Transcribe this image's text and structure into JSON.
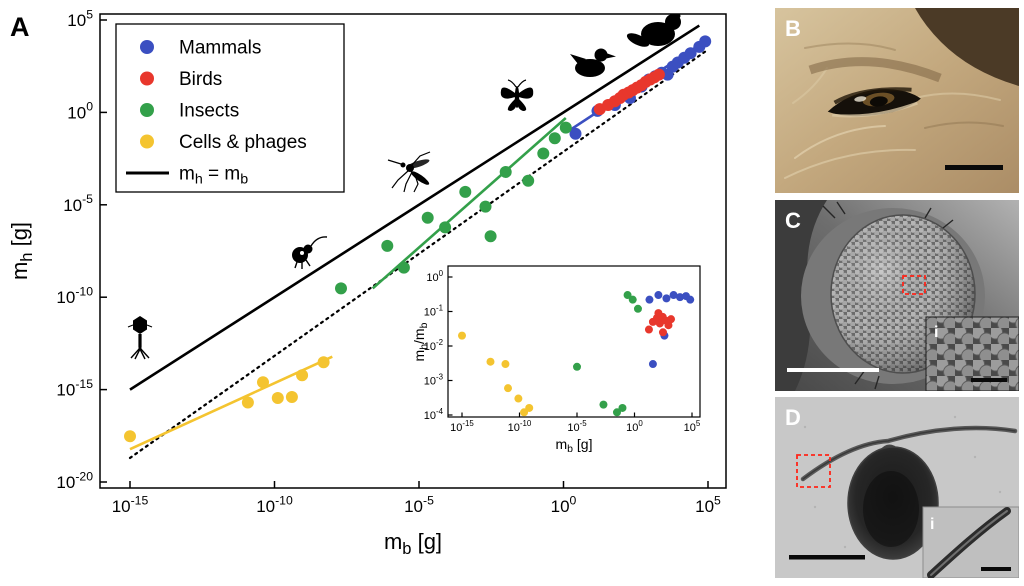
{
  "panels": {
    "a": "A",
    "b": "B",
    "c": "C",
    "d": "D",
    "inset_c": "i",
    "inset_d": "i"
  },
  "colors": {
    "mammals": "#3b4fc1",
    "birds": "#e8372c",
    "insects": "#33a04a",
    "cells": "#f4c430",
    "black": "#000000",
    "roi": "#ff2519"
  },
  "icons": [
    "beaver-silhouette",
    "duck-silhouette",
    "butterfly-silhouette",
    "mosquito-silhouette",
    "springtail-silhouette",
    "phage-silhouette",
    "roi-box",
    "scale-bar"
  ],
  "chart_data": [
    {
      "name": "main-plot",
      "type": "scatter",
      "xscale": "log",
      "yscale": "log",
      "xlabel": "m_b [g]",
      "ylabel": "m_h [g]",
      "xlim": [
        1e-15,
        100000.0
      ],
      "ylim": [
        1e-20,
        100000.0
      ],
      "grid": false,
      "x_tick_exponents": [
        -15,
        -10,
        -5,
        0,
        5
      ],
      "y_tick_exponents": [
        5,
        0,
        -5,
        -10,
        -15,
        -20
      ],
      "legend": [
        {
          "label": "Mammals",
          "marker": "dot",
          "color_key": "mammals"
        },
        {
          "label": "Birds",
          "marker": "dot",
          "color_key": "birds"
        },
        {
          "label": "Insects",
          "marker": "dot",
          "color_key": "insects"
        },
        {
          "label": "Cells & phages",
          "marker": "dot",
          "color_key": "cells"
        },
        {
          "label": "m_h = m_b",
          "marker": "line",
          "color_key": "black"
        }
      ],
      "lines": [
        {
          "name": "identity",
          "style": "solid",
          "color_key": "black",
          "width": 2.6,
          "x": [
            1e-15,
            50000.0
          ],
          "y": [
            1e-15,
            50000.0
          ]
        },
        {
          "name": "fit-all-dotted",
          "style": "dotted",
          "color_key": "black",
          "width": 2.2,
          "x": [
            1e-15,
            100000.0
          ],
          "y": [
            2e-19,
            2500.0
          ]
        },
        {
          "name": "fit-cells",
          "style": "solid",
          "color_key": "cells",
          "width": 2.6,
          "x": [
            1e-15,
            1e-08
          ],
          "y": [
            6e-19,
            6e-14
          ]
        },
        {
          "name": "fit-insects",
          "style": "solid",
          "color_key": "insects",
          "width": 2.6,
          "x": [
            2.5e-07,
            1.2
          ],
          "y": [
            3e-10,
            0.5
          ]
        },
        {
          "name": "fit-birds",
          "style": "solid",
          "color_key": "birds",
          "width": 2.6,
          "x": [
            15,
            2500
          ],
          "y": [
            1.3,
            160
          ]
        },
        {
          "name": "fit-mammals",
          "style": "solid",
          "color_key": "mammals",
          "width": 2.6,
          "x": [
            1.8,
            90000.0
          ],
          "y": [
            0.12,
            8000.0
          ]
        }
      ],
      "series": [
        {
          "name": "Mammals",
          "color_key": "mammals",
          "points": [
            [
              2.6,
              0.07
            ],
            [
              15,
              1.2
            ],
            [
              60,
              2.5
            ],
            [
              200,
              6
            ],
            [
              500,
              25
            ],
            [
              900,
              60
            ],
            [
              1500,
              90
            ],
            [
              2500,
              140
            ],
            [
              4000,
              110
            ],
            [
              6000,
              300
            ],
            [
              9000,
              500
            ],
            [
              15000,
              900
            ],
            [
              25000,
              1600
            ],
            [
              50000,
              3500
            ],
            [
              80000,
              7000
            ]
          ]
        },
        {
          "name": "Birds",
          "color_key": "birds",
          "points": [
            [
              18,
              1.5
            ],
            [
              35,
              2.5
            ],
            [
              60,
              4
            ],
            [
              90,
              6
            ],
            [
              120,
              9
            ],
            [
              180,
              12
            ],
            [
              250,
              16
            ],
            [
              350,
              22
            ],
            [
              500,
              30
            ],
            [
              700,
              45
            ],
            [
              1000,
              60
            ],
            [
              1400,
              80
            ],
            [
              2000,
              110
            ]
          ]
        },
        {
          "name": "Insects",
          "color_key": "insects",
          "points": [
            [
              2e-08,
              3e-10
            ],
            [
              8e-07,
              6e-08
            ],
            [
              3e-06,
              4e-09
            ],
            [
              2e-05,
              2e-06
            ],
            [
              8e-05,
              6e-07
            ],
            [
              0.0004,
              5e-05
            ],
            [
              0.003,
              2e-07
            ],
            [
              0.002,
              8e-06
            ],
            [
              0.01,
              0.0006
            ],
            [
              0.06,
              0.0002
            ],
            [
              0.2,
              0.006
            ],
            [
              0.5,
              0.04
            ],
            [
              1.2,
              0.15
            ]
          ]
        },
        {
          "name": "Cells & phages",
          "color_key": "cells",
          "points": [
            [
              1e-15,
              3e-18
            ],
            [
              1.2e-11,
              2e-16
            ],
            [
              4e-11,
              2.5e-15
            ],
            [
              1.3e-10,
              3.5e-16
            ],
            [
              4e-10,
              4e-16
            ],
            [
              9e-10,
              6e-15
            ],
            [
              5e-09,
              3e-14
            ]
          ]
        }
      ]
    },
    {
      "name": "inset-plot",
      "type": "scatter",
      "xscale": "log",
      "yscale": "log",
      "xlabel": "m_b [g]",
      "ylabel": "m_h/m_b",
      "xlim": [
        1e-15,
        100000.0
      ],
      "ylim": [
        0.0001,
        1.0
      ],
      "grid": false,
      "x_tick_exponents": [
        -15,
        -10,
        -5,
        0,
        5
      ],
      "y_tick_exponents": [
        0,
        -1,
        -2,
        -3,
        -4
      ],
      "series": [
        {
          "name": "Mammals",
          "color_key": "mammals",
          "points": [
            [
              20,
              0.22
            ],
            [
              120,
              0.3
            ],
            [
              600,
              0.24
            ],
            [
              2500,
              0.3
            ],
            [
              9000,
              0.26
            ],
            [
              30000,
              0.28
            ],
            [
              70000,
              0.22
            ],
            [
              400,
              0.02
            ],
            [
              40,
              0.003
            ]
          ]
        },
        {
          "name": "Birds",
          "color_key": "birds",
          "points": [
            [
              18,
              0.03
            ],
            [
              40,
              0.05
            ],
            [
              90,
              0.065
            ],
            [
              160,
              0.045
            ],
            [
              280,
              0.07
            ],
            [
              500,
              0.055
            ],
            [
              900,
              0.04
            ],
            [
              1500,
              0.06
            ],
            [
              120,
              0.09
            ],
            [
              300,
              0.025
            ]
          ]
        },
        {
          "name": "Insects",
          "color_key": "insects",
          "points": [
            [
              1e-05,
              0.0025
            ],
            [
              0.002,
              0.0002
            ],
            [
              0.03,
              0.00012
            ],
            [
              0.09,
              0.00016
            ],
            [
              0.25,
              0.3
            ],
            [
              0.7,
              0.22
            ],
            [
              2,
              0.12
            ]
          ]
        },
        {
          "name": "Cells & phages",
          "color_key": "cells",
          "points": [
            [
              1e-15,
              0.02
            ],
            [
              3e-13,
              0.0035
            ],
            [
              6e-12,
              0.003
            ],
            [
              1e-11,
              0.0006
            ],
            [
              8e-11,
              0.0003
            ],
            [
              2.5e-10,
              0.00012
            ],
            [
              7e-10,
              0.00016
            ]
          ]
        }
      ]
    }
  ]
}
